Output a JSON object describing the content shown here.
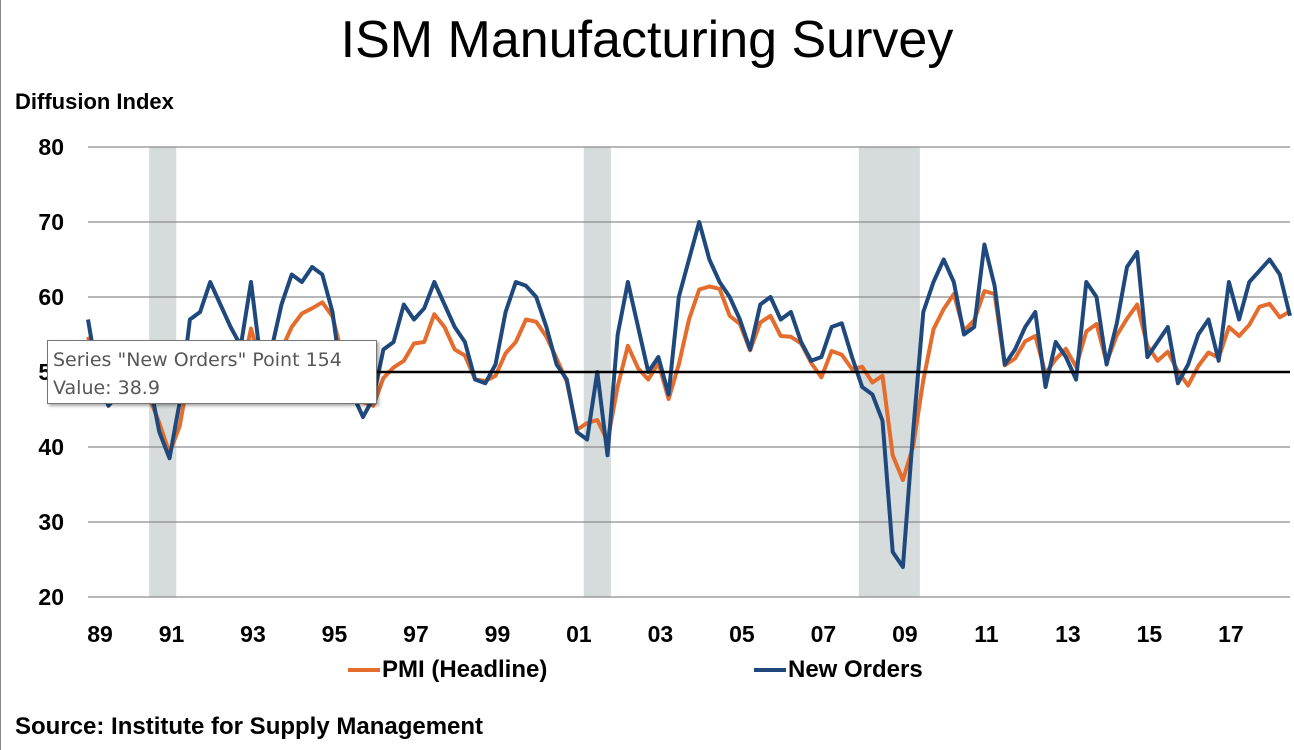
{
  "chart_data": {
    "type": "line",
    "title": "ISM Manufacturing Survey",
    "ylabel": "Diffusion Index",
    "xlabel": "",
    "ylim": [
      20,
      80
    ],
    "yticks": [
      "80",
      "70",
      "60",
      "50",
      "40",
      "30",
      "20"
    ],
    "xlim": [
      "1989-01",
      "2018-07"
    ],
    "xticks": [
      {
        "date": "1989-01",
        "label": "89"
      },
      {
        "date": "1991-01",
        "label": "91"
      },
      {
        "date": "1993-01",
        "label": "93"
      },
      {
        "date": "1995-01",
        "label": "95"
      },
      {
        "date": "1997-01",
        "label": "97"
      },
      {
        "date": "1999-01",
        "label": "99"
      },
      {
        "date": "2001-01",
        "label": "01"
      },
      {
        "date": "2003-01",
        "label": "03"
      },
      {
        "date": "2005-01",
        "label": "05"
      },
      {
        "date": "2007-01",
        "label": "07"
      },
      {
        "date": "2009-01",
        "label": "09"
      },
      {
        "date": "2011-01",
        "label": "11"
      },
      {
        "date": "2013-01",
        "label": "13"
      },
      {
        "date": "2015-01",
        "label": "15"
      },
      {
        "date": "2017-01",
        "label": "17"
      }
    ],
    "grid": "horizontal",
    "reference_line": 50,
    "shaded_periods": [
      [
        "1990-07",
        "1991-03"
      ],
      [
        "2001-03",
        "2001-11"
      ],
      [
        "2007-12",
        "2009-06"
      ]
    ],
    "legend_position": "bottom",
    "x": [
      "1989-01",
      "1989-04",
      "1989-07",
      "1989-10",
      "1990-01",
      "1990-04",
      "1990-07",
      "1990-10",
      "1991-01",
      "1991-04",
      "1991-07",
      "1991-10",
      "1992-01",
      "1992-04",
      "1992-07",
      "1992-10",
      "1993-01",
      "1993-04",
      "1993-07",
      "1993-10",
      "1994-01",
      "1994-04",
      "1994-07",
      "1994-10",
      "1995-01",
      "1995-04",
      "1995-07",
      "1995-10",
      "1996-01",
      "1996-04",
      "1996-07",
      "1996-10",
      "1997-01",
      "1997-04",
      "1997-07",
      "1997-10",
      "1998-01",
      "1998-04",
      "1998-07",
      "1998-10",
      "1999-01",
      "1999-04",
      "1999-07",
      "1999-10",
      "2000-01",
      "2000-04",
      "2000-07",
      "2000-10",
      "2001-01",
      "2001-04",
      "2001-07",
      "2001-10",
      "2002-01",
      "2002-04",
      "2002-07",
      "2002-10",
      "2003-01",
      "2003-04",
      "2003-07",
      "2003-10",
      "2004-01",
      "2004-04",
      "2004-07",
      "2004-10",
      "2005-01",
      "2005-04",
      "2005-07",
      "2005-10",
      "2006-01",
      "2006-04",
      "2006-07",
      "2006-10",
      "2007-01",
      "2007-04",
      "2007-07",
      "2007-10",
      "2008-01",
      "2008-04",
      "2008-07",
      "2008-10",
      "2009-01",
      "2009-04",
      "2009-07",
      "2009-10",
      "2010-01",
      "2010-04",
      "2010-07",
      "2010-10",
      "2011-01",
      "2011-04",
      "2011-07",
      "2011-10",
      "2012-01",
      "2012-04",
      "2012-07",
      "2012-10",
      "2013-01",
      "2013-04",
      "2013-07",
      "2013-10",
      "2014-01",
      "2014-04",
      "2014-07",
      "2014-10",
      "2015-01",
      "2015-04",
      "2015-07",
      "2015-10",
      "2016-01",
      "2016-04",
      "2016-07",
      "2016-10",
      "2017-01",
      "2017-04",
      "2017-07",
      "2017-10",
      "2018-01",
      "2018-04",
      "2018-07"
    ],
    "series": [
      {
        "name": "PMI (Headline)",
        "color": "#E46C2D",
        "values": [
          54.7,
          51.0,
          45.9,
          46.8,
          47.2,
          50.1,
          46.7,
          43.2,
          39.2,
          42.8,
          50.4,
          53.3,
          47.3,
          52.7,
          53.6,
          49.2,
          55.8,
          51.0,
          50.5,
          53.0,
          56.0,
          57.8,
          58.5,
          59.3,
          57.4,
          52.0,
          49.8,
          46.0,
          45.5,
          49.2,
          50.6,
          51.5,
          53.8,
          54.0,
          57.7,
          56.0,
          53.0,
          52.2,
          49.0,
          48.8,
          49.5,
          52.5,
          54.0,
          57.0,
          56.7,
          54.7,
          51.8,
          48.7,
          42.3,
          43.2,
          43.6,
          40.8,
          48.1,
          53.5,
          50.5,
          49.0,
          51.2,
          46.4,
          51.0,
          57.0,
          61.0,
          61.4,
          61.1,
          57.5,
          56.4,
          52.9,
          56.6,
          57.5,
          54.8,
          54.7,
          53.8,
          51.2,
          49.3,
          52.8,
          52.3,
          50.4,
          50.7,
          48.6,
          49.5,
          38.9,
          35.6,
          40.1,
          48.9,
          55.7,
          58.4,
          60.4,
          55.5,
          56.9,
          60.8,
          60.4,
          50.9,
          51.8,
          54.1,
          54.8,
          49.8,
          51.7,
          53.1,
          50.7,
          55.4,
          56.4,
          51.3,
          54.9,
          57.1,
          59.0,
          53.5,
          51.5,
          52.7,
          50.1,
          48.2,
          50.8,
          52.6,
          51.9,
          56.0,
          54.8,
          56.3,
          58.7,
          59.1,
          57.3,
          58.1
        ]
      },
      {
        "name": "New Orders",
        "color": "#1F497D",
        "values": [
          57.0,
          49.0,
          45.5,
          47.0,
          50.0,
          53.0,
          49.0,
          42.0,
          38.5,
          46.0,
          57.0,
          58.0,
          62.0,
          59.0,
          56.0,
          53.5,
          62.0,
          51.0,
          53.0,
          59.0,
          63.0,
          62.0,
          64.0,
          63.0,
          58.0,
          48.0,
          47.0,
          44.0,
          46.5,
          53.0,
          54.0,
          59.0,
          57.0,
          58.5,
          62.0,
          59.0,
          56.0,
          54.0,
          49.0,
          48.5,
          51.0,
          58.0,
          62.0,
          61.5,
          60.0,
          56.0,
          51.0,
          49.0,
          42.0,
          41.0,
          50.0,
          38.9,
          55.0,
          62.0,
          56.0,
          50.0,
          52.0,
          47.0,
          60.0,
          65.0,
          70.0,
          65.0,
          62.0,
          60.0,
          57.0,
          53.0,
          59.0,
          60.0,
          57.0,
          58.0,
          54.0,
          51.5,
          52.0,
          56.0,
          56.5,
          52.0,
          48.0,
          47.0,
          43.5,
          26.0,
          24.0,
          42.0,
          58.0,
          62.0,
          65.0,
          62.0,
          55.0,
          56.0,
          67.0,
          61.5,
          51.0,
          53.0,
          56.0,
          58.0,
          48.0,
          54.0,
          52.0,
          49.0,
          62.0,
          60.0,
          51.0,
          56.5,
          64.0,
          66.0,
          52.0,
          54.0,
          56.0,
          48.5,
          51.0,
          55.0,
          57.0,
          51.5,
          62.0,
          57.0,
          62.0,
          63.5,
          65.0,
          63.0,
          57.5
        ]
      }
    ],
    "source": "Source: Institute for Supply Management"
  },
  "tooltip": {
    "line1": "Series \"New Orders\" Point 154",
    "line2": "Value: 38.9"
  }
}
